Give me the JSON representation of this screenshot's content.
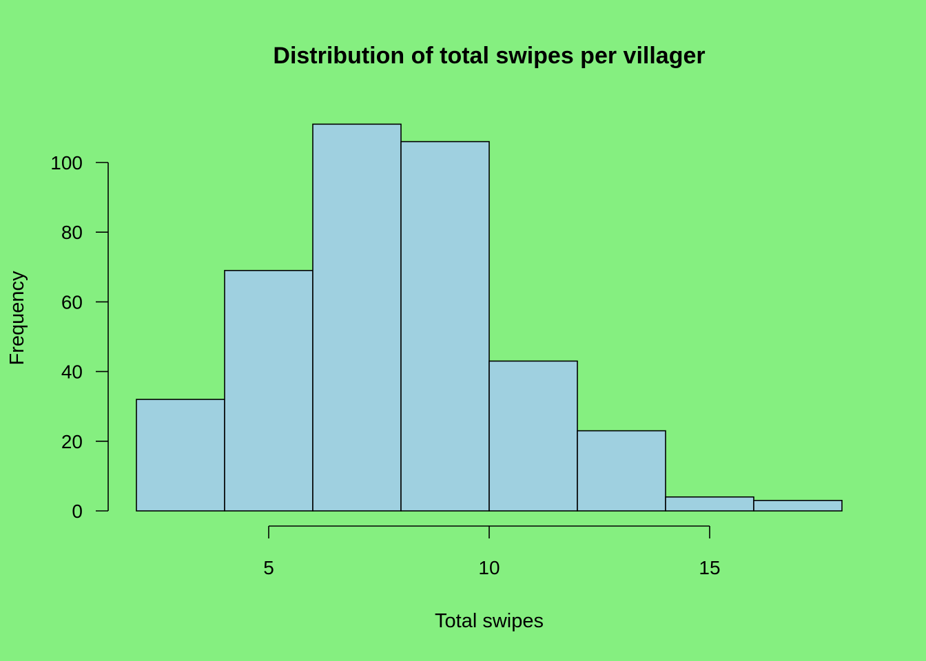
{
  "chart_data": {
    "type": "bar",
    "subtype": "histogram",
    "title": "Distribution of total swipes per villager",
    "xlabel": "Total swipes",
    "ylabel": "Frequency",
    "bins": [
      [
        2,
        4
      ],
      [
        4,
        6
      ],
      [
        6,
        8
      ],
      [
        8,
        10
      ],
      [
        10,
        12
      ],
      [
        12,
        14
      ],
      [
        14,
        16
      ],
      [
        16,
        18
      ]
    ],
    "categories": [
      "2-4",
      "4-6",
      "6-8",
      "8-10",
      "10-12",
      "12-14",
      "14-16",
      "16-18"
    ],
    "values": [
      32,
      69,
      111,
      106,
      43,
      23,
      4,
      3
    ],
    "x_ticks": [
      5,
      10,
      15
    ],
    "y_ticks": [
      0,
      20,
      40,
      60,
      80,
      100
    ],
    "xlim": [
      2,
      18
    ],
    "ylim": [
      0,
      111
    ],
    "grid": false,
    "legend": null,
    "colors": {
      "background": "#85EF80",
      "bar_fill": "#9FD0E0",
      "bar_stroke": "#000000"
    }
  }
}
